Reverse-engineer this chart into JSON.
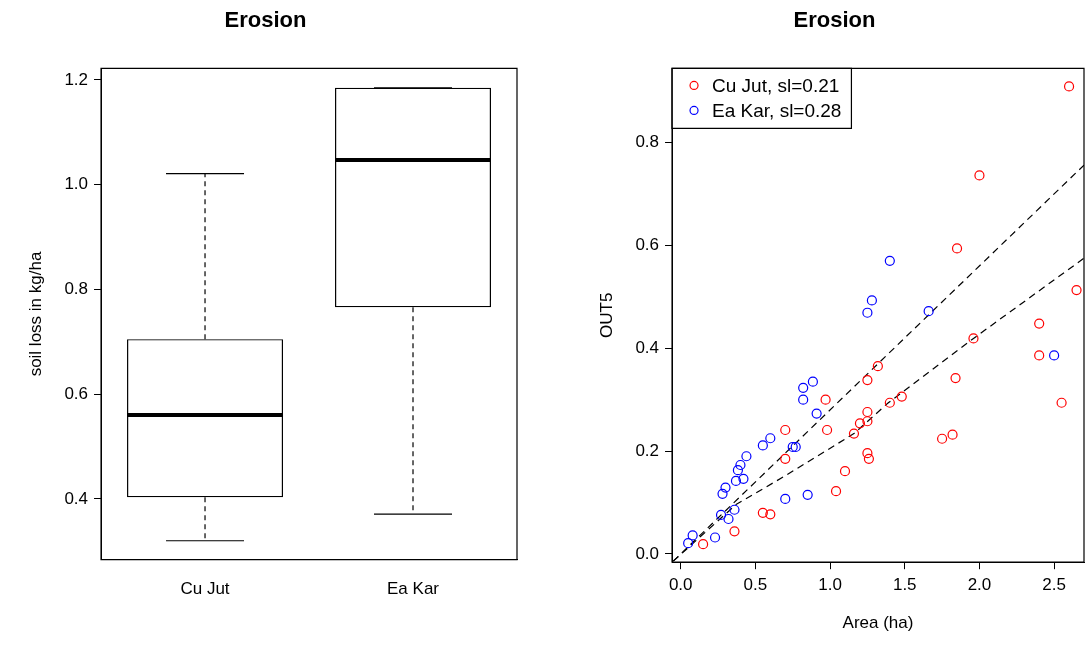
{
  "chart_data": [
    {
      "type": "box",
      "title": "Erosion",
      "ylabel": "soil loss in kg/ha",
      "categories": [
        "Cu Jut",
        "Ea Kar"
      ],
      "color": "#000000",
      "boxes": [
        {
          "low": 0.32,
          "q1": 0.403,
          "median": 0.56,
          "q3": 0.705,
          "high": 1.021
        },
        {
          "low": 0.371,
          "q1": 0.766,
          "median": 1.047,
          "q3": 1.185,
          "high": 1.185
        }
      ],
      "ylim": [
        0.284,
        1.222
      ],
      "yticks": [
        0.4,
        0.6,
        0.8,
        {
          "value": 1,
          "label": "1.0"
        },
        1.2
      ],
      "grid": false
    },
    {
      "type": "scatter",
      "title": "Erosion",
      "xlabel": "Area (ha)",
      "ylabel": "OUT5",
      "legend": "top left",
      "grid": false,
      "xlim": [
        -0.058,
        2.7
      ],
      "ylim": [
        -0.016,
        0.944
      ],
      "xticks": [
        {
          "value": 0,
          "label": "0.0"
        },
        {
          "value": 0.5,
          "label": "0.5"
        },
        {
          "value": 1,
          "label": "1.0"
        },
        {
          "value": 1.5,
          "label": "1.5"
        },
        {
          "value": 2,
          "label": "2.0"
        },
        {
          "value": 2.5,
          "label": "2.5"
        }
      ],
      "yticks": [
        {
          "value": 0,
          "label": "0.0"
        },
        {
          "value": 0.2,
          "label": "0.2"
        },
        {
          "value": 0.4,
          "label": "0.4"
        },
        {
          "value": 0.6,
          "label": "0.6"
        },
        {
          "value": 0.8,
          "label": "0.8"
        }
      ],
      "series": [
        {
          "name": "Cu Jut, sl=0.21",
          "color": "#ff0000",
          "marker": "circle",
          "x": [
            2.65,
            2.4,
            1.96,
            2.4,
            1.84,
            1.32,
            1.25,
            0.97,
            1.48,
            1.4,
            2.55,
            1.25,
            1.25,
            1.2,
            1.16,
            0.7,
            0.98,
            1.82,
            1.75,
            0.7,
            1.25,
            1.26,
            1.1,
            1.04,
            0.55,
            0.6,
            0.36,
            0.15,
            2.6,
            2.0,
            1.85
          ],
          "values": [
            0.513,
            0.448,
            0.419,
            0.386,
            0.342,
            0.365,
            0.338,
            0.3,
            0.306,
            0.294,
            0.294,
            0.276,
            0.258,
            0.254,
            0.234,
            0.241,
            0.241,
            0.232,
            0.224,
            0.185,
            0.196,
            0.185,
            0.161,
            0.122,
            0.08,
            0.077,
            0.044,
            0.019,
            0.909,
            0.736,
            0.594
          ]
        },
        {
          "name": "Ea Kar, sl=0.28",
          "color": "#0000ff",
          "marker": "circle",
          "x": [
            1.4,
            1.28,
            1.25,
            1.66,
            2.5,
            0.885,
            0.82,
            0.82,
            0.91,
            0.6,
            0.55,
            0.75,
            0.77,
            0.44,
            0.4,
            0.383,
            0.37,
            0.42,
            0.3,
            0.28,
            0.7,
            0.85,
            0.36,
            0.27,
            0.32,
            0.23,
            0.08,
            0.05
          ],
          "values": [
            0.57,
            0.493,
            0.469,
            0.472,
            0.386,
            0.335,
            0.323,
            0.3,
            0.273,
            0.225,
            0.211,
            0.208,
            0.208,
            0.19,
            0.173,
            0.163,
            0.142,
            0.146,
            0.129,
            0.117,
            0.107,
            0.115,
            0.086,
            0.076,
            0.068,
            0.032,
            0.036,
            0.021
          ]
        },
        {
          "type": "line",
          "color": "#000000",
          "line_style": "dashed",
          "marker": "none",
          "x": [
            -0.05,
            2.7
          ],
          "values": [
            -0.014,
            0.756
          ]
        },
        {
          "type": "line",
          "color": "#000000",
          "line_style": "dashed",
          "marker": "none",
          "x": [
            -0.05,
            0.37,
            0.7,
            1.16,
            1.39,
            1.96,
            2.7
          ],
          "values": [
            -0.014,
            0.096,
            0.152,
            0.234,
            0.294,
            0.419,
            0.575
          ]
        }
      ]
    }
  ]
}
